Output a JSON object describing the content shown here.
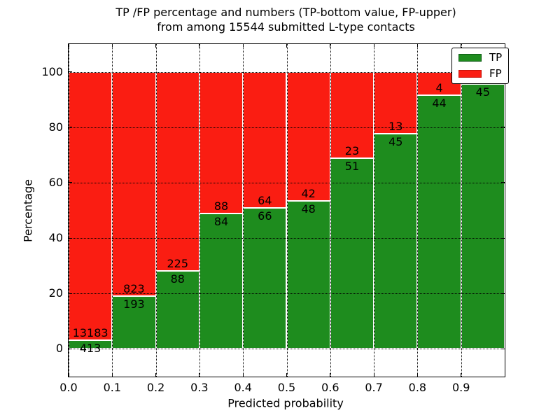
{
  "title": {
    "line1": "TP /FP percentage and numbers (TP-bottom value, FP-upper)",
    "line2": "from among 15544 submitted L-type contacts"
  },
  "x_axis": {
    "label": "Predicted probability",
    "tick_labels": [
      "0.0",
      "0.1",
      "0.2",
      "0.3",
      "0.4",
      "0.5",
      "0.6",
      "0.7",
      "0.8",
      "0.9"
    ]
  },
  "y_axis": {
    "label": "Percentage",
    "tick_values": [
      0,
      20,
      40,
      60,
      80,
      100
    ],
    "tick_labels": [
      "0",
      "20",
      "40",
      "60",
      "80",
      "100"
    ]
  },
  "legend": {
    "position": "upper-right",
    "items": [
      {
        "label": "TP",
        "color": "#1e8c1e",
        "edge": "#0f5c16"
      },
      {
        "label": "FP",
        "color": "#fa1d12",
        "edge": "#c9150c"
      }
    ]
  },
  "chart_data": {
    "type": "bar",
    "stacked": true,
    "normalized": "each bin stacks to 100%",
    "title": "TP /FP percentage and numbers (TP-bottom value, FP-upper) from among 15544 submitted L-type contacts",
    "xlabel": "Predicted probability",
    "ylabel": "Percentage",
    "xlim": [
      0.0,
      1.0
    ],
    "ylim": [
      -10,
      110
    ],
    "grid": {
      "on": true,
      "style": "dotted",
      "color": "#000000"
    },
    "bin_width": 0.1,
    "bin_starts": [
      0.0,
      0.1,
      0.2,
      0.3,
      0.4,
      0.5,
      0.6,
      0.7,
      0.8,
      0.9
    ],
    "total_submitted": 15544,
    "series": [
      {
        "name": "TP",
        "color": "#1e8c1e",
        "counts": [
          413,
          193,
          88,
          84,
          66,
          48,
          51,
          45,
          44,
          45
        ],
        "labels": [
          "413",
          "193",
          "88",
          "84",
          "66",
          "48",
          "51",
          "45",
          "44",
          "45"
        ]
      },
      {
        "name": "FP",
        "color": "#fa1d12",
        "counts": [
          13183,
          823,
          225,
          88,
          64,
          42,
          23,
          13,
          4,
          null
        ],
        "labels": [
          "13183",
          "823",
          "225",
          "88",
          "64",
          "42",
          "23",
          "13",
          "4",
          ""
        ]
      }
    ],
    "tp_percent": [
      3.04,
      19.0,
      28.12,
      48.84,
      50.77,
      53.33,
      68.92,
      77.59,
      91.67,
      95.7
    ]
  }
}
